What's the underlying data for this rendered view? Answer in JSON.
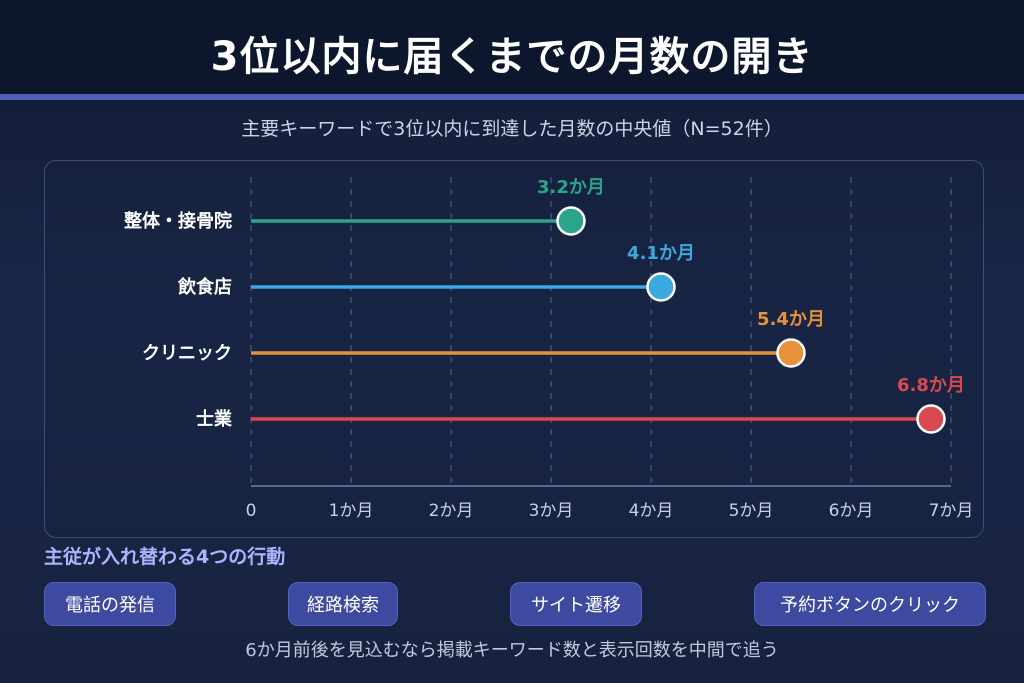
{
  "header": {
    "title": "3位以内に届くまでの月数の開き",
    "subtitle": "主要キーワードで3位以内に到達した月数の中央値（N=52件）"
  },
  "chart_data": {
    "type": "lollipop",
    "title": "",
    "categories": [
      "整体・接骨院",
      "飲食店",
      "クリニック",
      "士業"
    ],
    "values": [
      3.2,
      4.1,
      5.4,
      6.8
    ],
    "value_labels": [
      "3.2か月",
      "4.1か月",
      "5.4か月",
      "6.8か月"
    ],
    "colors": [
      "#2aa58a",
      "#3aa9dd",
      "#e7913a",
      "#d9494f"
    ],
    "x_ticks": [
      "0",
      "1か月",
      "2か月",
      "3か月",
      "4か月",
      "5か月",
      "6か月",
      "7か月"
    ],
    "xlim": [
      0,
      7
    ],
    "grid": "vertical-dashed"
  },
  "actions": {
    "heading": "主従が入れ替わる4つの行動",
    "items": [
      "電話の発信",
      "経路検索",
      "サイト遷移",
      "予約ボタンのクリック"
    ]
  },
  "footer": {
    "note": "6か月前後を見込むなら掲載キーワード数と表示回数を中間で追う"
  }
}
